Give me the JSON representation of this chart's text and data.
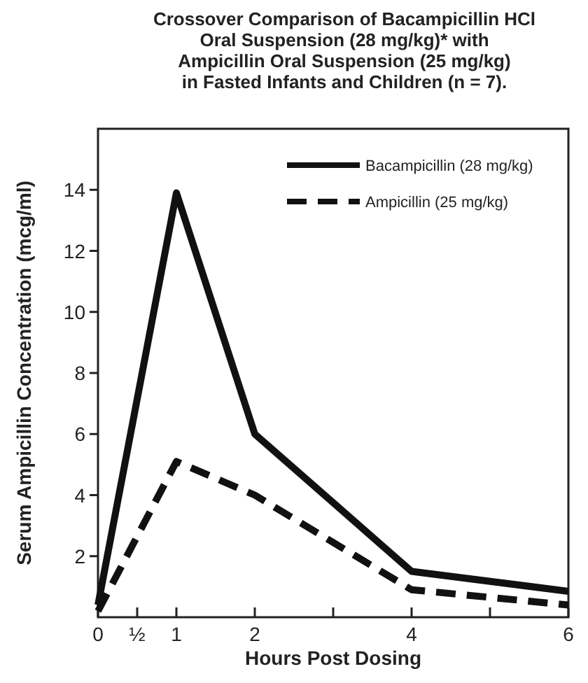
{
  "chart_data": {
    "type": "line",
    "title": "Crossover Comparison of Bacampicillin HCl\nOral Suspension (28 mg/kg)* with\nAmpicillin Oral Suspension (25 mg/kg)\nin Fasted Infants and Children (n = 7).",
    "xlabel": "Hours Post Dosing",
    "ylabel": "Serum Ampicillin Concentration (mcg/ml)",
    "x": [
      0,
      1,
      2,
      4,
      6
    ],
    "series": [
      {
        "name": "Bacampicillin (28 mg/kg)",
        "color": "#111111",
        "values": [
          0.4,
          13.9,
          6.0,
          1.5,
          0.85
        ],
        "line_style": "solid"
      },
      {
        "name": "Ampicillin (25 mg/kg)",
        "color": "#111111",
        "values": [
          0.2,
          5.1,
          4.0,
          0.9,
          0.4
        ],
        "line_style": "dashed"
      }
    ],
    "xlim": [
      0,
      6
    ],
    "ylim": [
      0,
      16
    ],
    "xticks": [
      0,
      {
        "value": 0.5,
        "label": "½"
      },
      1,
      2,
      {
        "value": 3,
        "label": null
      },
      4,
      {
        "value": 5,
        "label": null
      },
      6
    ],
    "yticks": [
      2,
      4,
      6,
      8,
      10,
      12,
      14
    ],
    "legend": "top right",
    "grid": false
  }
}
